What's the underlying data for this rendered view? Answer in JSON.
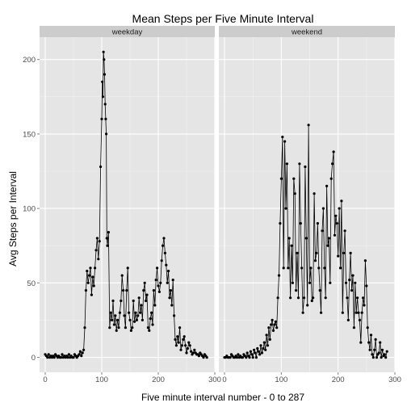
{
  "chart_data": {
    "type": "line",
    "title": "Mean Steps per Five Minute Interval",
    "xlabel": "Five minute interval number - 0 to 287",
    "ylabel": "Avg Steps per Interval",
    "xlim": [
      -10,
      300
    ],
    "ylim": [
      -10,
      215
    ],
    "x_ticks": [
      0,
      100,
      200,
      300
    ],
    "y_ticks": [
      0,
      50,
      100,
      150,
      200
    ],
    "grid": true,
    "markers": true,
    "colors": {
      "panel_bg": "#e5e5e5",
      "strip_bg": "#cccccc",
      "grid": "#ffffff",
      "line": "#000000"
    },
    "panels": [
      {
        "label": "weekday",
        "series": [
          {
            "x": [
              0,
              2,
              4,
              6,
              8,
              10,
              12,
              14,
              16,
              18,
              20,
              22,
              24,
              26,
              28,
              30,
              32,
              34,
              36,
              38,
              40,
              42,
              44,
              46,
              48,
              50,
              52,
              54,
              56,
              58,
              60,
              62,
              64,
              66,
              68,
              70,
              72,
              74,
              76,
              78,
              80,
              82,
              84,
              86,
              88,
              90,
              92,
              94,
              96,
              98,
              100,
              101,
              102,
              103,
              104,
              105,
              106,
              107,
              108,
              109,
              110,
              112,
              114,
              116,
              118,
              120,
              122,
              124,
              126,
              128,
              130,
              132,
              134,
              136,
              138,
              140,
              142,
              144,
              146,
              148,
              150,
              152,
              154,
              156,
              158,
              160,
              162,
              164,
              166,
              168,
              170,
              172,
              174,
              176,
              178,
              180,
              182,
              184,
              186,
              188,
              190,
              192,
              194,
              196,
              198,
              200,
              202,
              204,
              206,
              208,
              210,
              212,
              214,
              216,
              218,
              220,
              222,
              224,
              226,
              228,
              230,
              232,
              234,
              236,
              238,
              240,
              242,
              244,
              246,
              248,
              250,
              252,
              254,
              256,
              258,
              260,
              262,
              264,
              266,
              268,
              270,
              272,
              274,
              276,
              278,
              280,
              282,
              284,
              286
            ],
            "y": [
              2,
              1,
              0,
              2,
              0,
              1,
              0,
              1,
              0,
              2,
              1,
              0,
              1,
              0,
              0,
              2,
              0,
              1,
              0,
              1,
              0,
              2,
              0,
              1,
              0,
              0,
              2,
              1,
              0,
              1,
              2,
              4,
              1,
              3,
              5,
              20,
              45,
              58,
              50,
              55,
              60,
              42,
              54,
              48,
              60,
              72,
              80,
              66,
              78,
              128,
              160,
              185,
              175,
              205,
              200,
              190,
              170,
              160,
              150,
              80,
              75,
              84,
              20,
              30,
              25,
              38,
              22,
              28,
              18,
              25,
              20,
              30,
              38,
              55,
              45,
              28,
              20,
              45,
              60,
              30,
              25,
              18,
              20,
              38,
              24,
              30,
              25,
              28,
              40,
              30,
              35,
              25,
              45,
              50,
              38,
              42,
              20,
              18,
              26,
              30,
              22,
              45,
              35,
              52,
              60,
              48,
              44,
              50,
              65,
              75,
              80,
              70,
              62,
              50,
              58,
              40,
              45,
              35,
              52,
              28,
              12,
              8,
              14,
              10,
              20,
              5,
              8,
              12,
              14,
              8,
              3,
              6,
              10,
              8,
              4,
              2,
              3,
              5,
              3,
              2,
              2,
              1,
              3,
              2,
              1,
              0,
              2,
              1,
              0
            ]
          }
        ]
      },
      {
        "label": "weekend",
        "series": [
          {
            "x": [
              0,
              2,
              4,
              6,
              8,
              10,
              12,
              14,
              16,
              18,
              20,
              22,
              24,
              26,
              28,
              30,
              32,
              34,
              36,
              38,
              40,
              42,
              44,
              46,
              48,
              50,
              52,
              54,
              56,
              58,
              60,
              62,
              64,
              66,
              68,
              70,
              72,
              74,
              76,
              78,
              80,
              82,
              84,
              86,
              88,
              90,
              92,
              94,
              96,
              98,
              100,
              102,
              104,
              106,
              108,
              110,
              112,
              114,
              116,
              118,
              120,
              122,
              124,
              126,
              128,
              130,
              132,
              134,
              136,
              138,
              140,
              142,
              144,
              146,
              148,
              150,
              152,
              154,
              156,
              158,
              160,
              162,
              164,
              166,
              168,
              170,
              172,
              174,
              176,
              178,
              180,
              182,
              184,
              186,
              188,
              190,
              192,
              194,
              196,
              198,
              200,
              202,
              204,
              206,
              208,
              210,
              212,
              214,
              216,
              218,
              220,
              222,
              224,
              226,
              228,
              230,
              232,
              234,
              236,
              238,
              240,
              242,
              244,
              246,
              248,
              250,
              252,
              254,
              256,
              258,
              260,
              262,
              264,
              266,
              268,
              270,
              272,
              274,
              276,
              278,
              280,
              282,
              284,
              286
            ],
            "y": [
              0,
              0,
              1,
              0,
              0,
              0,
              2,
              1,
              0,
              0,
              1,
              0,
              2,
              0,
              1,
              0,
              0,
              2,
              1,
              0,
              3,
              1,
              0,
              4,
              2,
              0,
              5,
              3,
              0,
              6,
              4,
              2,
              8,
              3,
              6,
              10,
              5,
              15,
              8,
              20,
              12,
              22,
              25,
              18,
              22,
              24,
              20,
              40,
              55,
              90,
              120,
              148,
              60,
              145,
              100,
              130,
              60,
              80,
              40,
              75,
              50,
              120,
              110,
              45,
              70,
              40,
              130,
              90,
              60,
              30,
              40,
              128,
              80,
              35,
              156,
              50,
              60,
              38,
              40,
              110,
              65,
              70,
              90,
              60,
              45,
              30,
              85,
              100,
              60,
              40,
              115,
              75,
              80,
              50,
              120,
              130,
              138,
              82,
              95,
              90,
              68,
              100,
              60,
              105,
              30,
              70,
              85,
              50,
              40,
              25,
              52,
              70,
              45,
              55,
              20,
              50,
              30,
              40,
              30,
              25,
              10,
              30,
              40,
              35,
              65,
              48,
              20,
              10,
              5,
              15,
              2,
              0,
              5,
              12,
              0,
              2,
              3,
              10,
              0,
              5,
              1,
              2,
              0,
              4
            ]
          }
        ]
      }
    ]
  }
}
